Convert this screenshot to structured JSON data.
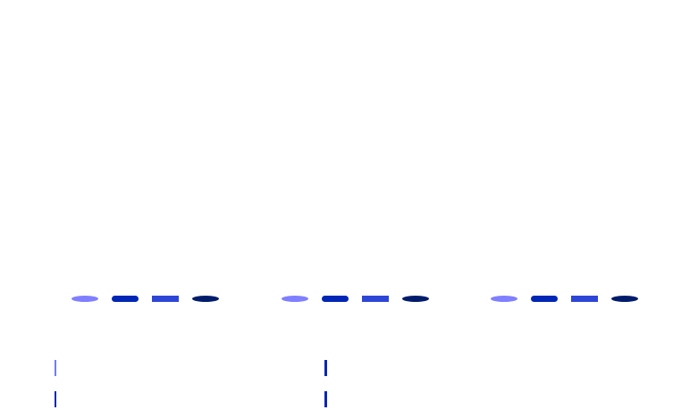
{
  "colors": {
    "background": "#ffffff",
    "indicator_light": "#7f7fff",
    "indicator_medium": "#0026b5",
    "indicator_bright": "#2e46d6",
    "indicator_dark": "#011c6b",
    "marker_light": "#6d7cff",
    "marker_dark": "#0a27b0"
  },
  "indicator_groups": [
    {
      "indicators": [
        {
          "shape": "oval",
          "color": "#7f7fff"
        },
        {
          "shape": "pill",
          "color": "#0026b5"
        },
        {
          "shape": "rect",
          "color": "#2e46d6"
        },
        {
          "shape": "oval-dark",
          "color": "#011c6b"
        }
      ]
    },
    {
      "indicators": [
        {
          "shape": "oval",
          "color": "#7f7fff"
        },
        {
          "shape": "pill",
          "color": "#0026b5"
        },
        {
          "shape": "rect",
          "color": "#2e46d6"
        },
        {
          "shape": "oval-dark",
          "color": "#011c6b"
        }
      ]
    },
    {
      "indicators": [
        {
          "shape": "oval",
          "color": "#7f7fff"
        },
        {
          "shape": "pill",
          "color": "#0026b5"
        },
        {
          "shape": "rect",
          "color": "#2e46d6"
        },
        {
          "shape": "oval-dark",
          "color": "#011c6b"
        }
      ]
    }
  ],
  "markers": [
    {
      "color": "#6d7cff"
    },
    {
      "color": "#0a27b0"
    },
    {
      "color": "#0a27b0"
    },
    {
      "color": "#0a27b0"
    }
  ]
}
